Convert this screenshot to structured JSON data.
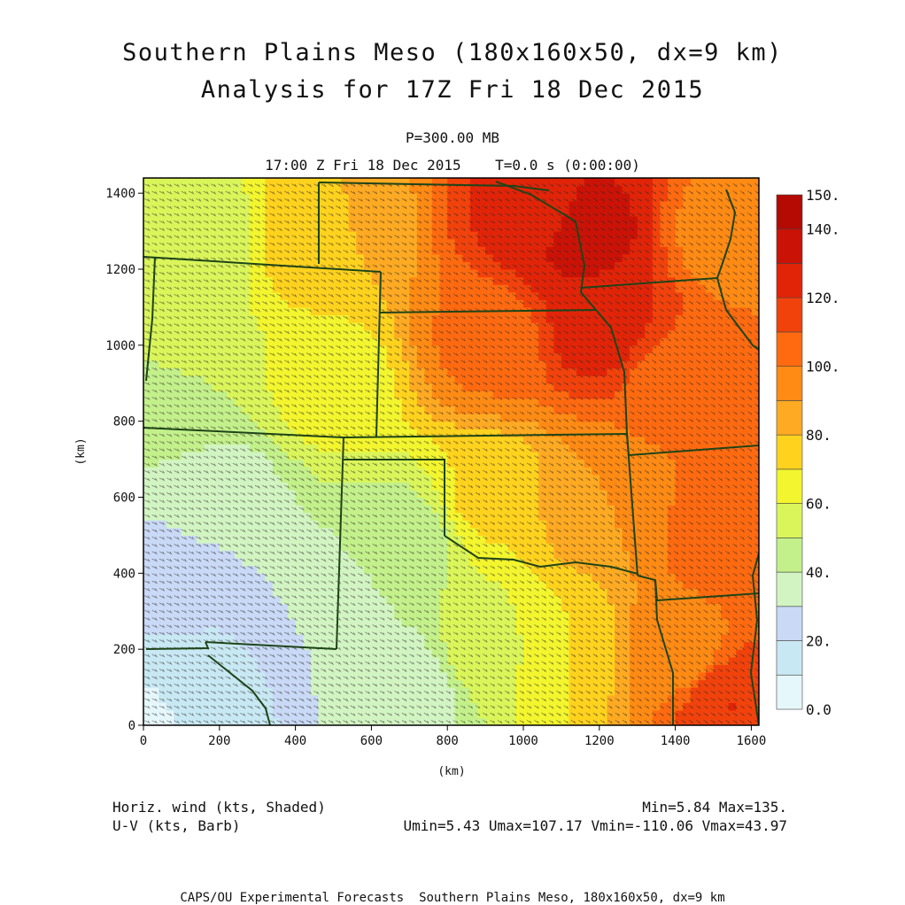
{
  "header": {
    "title_line1": "Southern Plains Meso (180x160x50, dx=9 km)",
    "title_line2": "Analysis for 17Z Fri 18 Dec 2015",
    "level": "P=300.00 MB",
    "valid_time": "17:00 Z Fri 18 Dec 2015    T=0.0 s (0:00:00)"
  },
  "footer": {
    "variable_shaded": "Horiz. wind (kts, Shaded)",
    "variable_barb": "U-V (kts, Barb)",
    "minmax": "Min=5.84 Max=135.",
    "uv_range": "Umin=5.43 Umax=107.17 Vmin=-110.06 Vmax=43.97",
    "credit": "CAPS/OU Experimental Forecasts  Southern Plains Meso, 180x160x50, dx=9 km"
  },
  "chart_data": {
    "type": "heatmap",
    "title": "Southern Plains Meso (180x160x50, dx=9 km)",
    "subtitle": "Analysis for 17Z Fri 18 Dec 2015",
    "xlabel": "(km)",
    "ylabel": "(km)",
    "xlim": [
      0,
      1620
    ],
    "ylim": [
      0,
      1440
    ],
    "xticks": [
      0,
      200,
      400,
      600,
      800,
      1000,
      1200,
      1400,
      1600
    ],
    "yticks": [
      0,
      200,
      400,
      600,
      800,
      1000,
      1200,
      1400
    ],
    "field": "Horiz. wind (kts, Shaded)",
    "min": 5.84,
    "max": 135,
    "umin": 5.43,
    "umax": 107.17,
    "vmin": -110.06,
    "vmax": 43.97,
    "jet_max_center_km": [
      1150,
      1330
    ],
    "colorbar": {
      "levels": [
        0,
        10,
        20,
        30,
        40,
        50,
        60,
        70,
        80,
        90,
        100,
        110,
        120,
        130,
        140,
        150
      ],
      "labels": [
        "0.0",
        "20.",
        "40.",
        "60.",
        "80.",
        "100.",
        "120.",
        "140.",
        "150."
      ],
      "colors": [
        "#e6f7fb",
        "#c8e8f3",
        "#c9d9f6",
        "#d2f4c2",
        "#c3f08a",
        "#daf55a",
        "#f3f52e",
        "#ffd21e",
        "#ffaa22",
        "#ff8a14",
        "#ff6a10",
        "#f2420c",
        "#e12408",
        "#cb1206",
        "#b30a04"
      ]
    },
    "sample_points": [
      {
        "x": 0,
        "y": 0,
        "v": 8
      },
      {
        "x": 150,
        "y": 100,
        "v": 14
      },
      {
        "x": 100,
        "y": 380,
        "v": 24
      },
      {
        "x": 200,
        "y": 600,
        "v": 36
      },
      {
        "x": 100,
        "y": 900,
        "v": 50
      },
      {
        "x": 100,
        "y": 1300,
        "v": 52
      },
      {
        "x": 450,
        "y": 300,
        "v": 30
      },
      {
        "x": 700,
        "y": 100,
        "v": 33
      },
      {
        "x": 700,
        "y": 500,
        "v": 45
      },
      {
        "x": 500,
        "y": 900,
        "v": 65
      },
      {
        "x": 500,
        "y": 1300,
        "v": 80
      },
      {
        "x": 900,
        "y": 200,
        "v": 55
      },
      {
        "x": 900,
        "y": 600,
        "v": 72
      },
      {
        "x": 900,
        "y": 1000,
        "v": 102
      },
      {
        "x": 1050,
        "y": 1350,
        "v": 125
      },
      {
        "x": 1150,
        "y": 1300,
        "v": 135
      },
      {
        "x": 1200,
        "y": 1050,
        "v": 125
      },
      {
        "x": 1100,
        "y": 200,
        "v": 70
      },
      {
        "x": 1200,
        "y": 600,
        "v": 90
      },
      {
        "x": 1400,
        "y": 200,
        "v": 95
      },
      {
        "x": 1400,
        "y": 900,
        "v": 105
      },
      {
        "x": 1550,
        "y": 50,
        "v": 120
      },
      {
        "x": 1550,
        "y": 500,
        "v": 108
      },
      {
        "x": 1550,
        "y": 1300,
        "v": 95
      }
    ]
  }
}
